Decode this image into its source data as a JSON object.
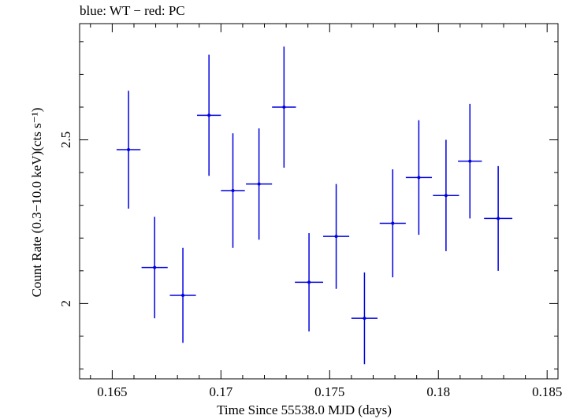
{
  "chart_data": {
    "type": "scatter",
    "title": "blue: WT − red: PC",
    "xlabel": "Time Since 55538.0 MJD (days)",
    "ylabel": "Count Rate (0.3−10.0 keV)(cts s⁻¹)",
    "xlim": [
      0.1635,
      0.1855
    ],
    "ylim": [
      1.77,
      2.855
    ],
    "x_ticks": [
      0.165,
      0.17,
      0.175,
      0.18,
      0.185
    ],
    "x_tick_labels": [
      "0.165",
      "0.17",
      "0.175",
      "0.18",
      "0.185"
    ],
    "y_ticks": [
      2.0,
      2.5
    ],
    "y_tick_labels": [
      "2",
      "2.5"
    ],
    "grid": false,
    "series": [
      {
        "color": "#0000e0",
        "points": [
          {
            "x": 0.16575,
            "y": 2.47,
            "xerr": 0.00055,
            "yerr_lo": 0.18,
            "yerr_hi": 0.18
          },
          {
            "x": 0.16695,
            "y": 2.11,
            "xerr": 0.0006,
            "yerr_lo": 0.155,
            "yerr_hi": 0.155
          },
          {
            "x": 0.16825,
            "y": 2.025,
            "xerr": 0.0006,
            "yerr_lo": 0.145,
            "yerr_hi": 0.145
          },
          {
            "x": 0.16945,
            "y": 2.575,
            "xerr": 0.00055,
            "yerr_lo": 0.185,
            "yerr_hi": 0.185
          },
          {
            "x": 0.17055,
            "y": 2.345,
            "xerr": 0.00055,
            "yerr_lo": 0.175,
            "yerr_hi": 0.175
          },
          {
            "x": 0.17175,
            "y": 2.365,
            "xerr": 0.0006,
            "yerr_lo": 0.17,
            "yerr_hi": 0.17
          },
          {
            "x": 0.1729,
            "y": 2.6,
            "xerr": 0.00055,
            "yerr_lo": 0.185,
            "yerr_hi": 0.185
          },
          {
            "x": 0.17405,
            "y": 2.065,
            "xerr": 0.00065,
            "yerr_lo": 0.15,
            "yerr_hi": 0.15
          },
          {
            "x": 0.1753,
            "y": 2.205,
            "xerr": 0.0006,
            "yerr_lo": 0.16,
            "yerr_hi": 0.16
          },
          {
            "x": 0.1766,
            "y": 1.955,
            "xerr": 0.0006,
            "yerr_lo": 0.14,
            "yerr_hi": 0.14
          },
          {
            "x": 0.1779,
            "y": 2.245,
            "xerr": 0.0006,
            "yerr_lo": 0.165,
            "yerr_hi": 0.165
          },
          {
            "x": 0.1791,
            "y": 2.385,
            "xerr": 0.0006,
            "yerr_lo": 0.175,
            "yerr_hi": 0.175
          },
          {
            "x": 0.18035,
            "y": 2.33,
            "xerr": 0.0006,
            "yerr_lo": 0.17,
            "yerr_hi": 0.17
          },
          {
            "x": 0.18145,
            "y": 2.435,
            "xerr": 0.00055,
            "yerr_lo": 0.175,
            "yerr_hi": 0.175
          },
          {
            "x": 0.18275,
            "y": 2.26,
            "xerr": 0.00065,
            "yerr_lo": 0.16,
            "yerr_hi": 0.16
          }
        ]
      }
    ]
  }
}
